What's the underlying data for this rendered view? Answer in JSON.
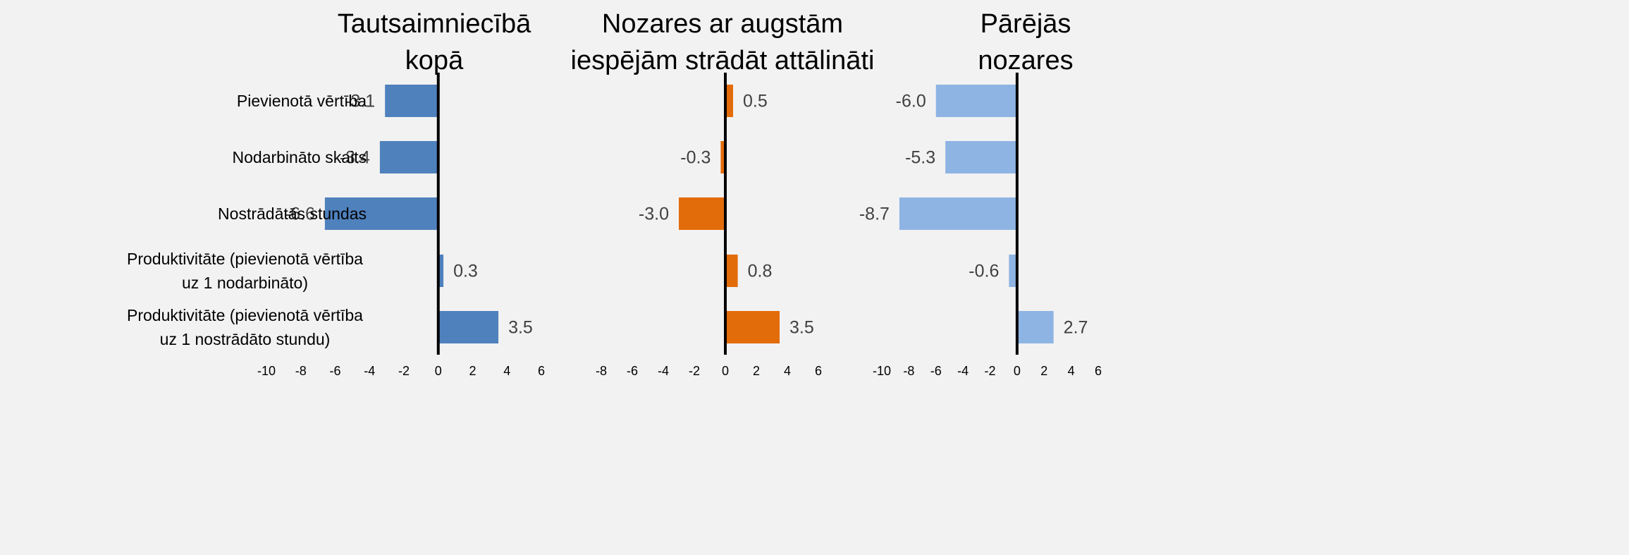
{
  "chart_data": [
    {
      "type": "barh",
      "title": "Tautsaimniecībā kopā",
      "categories": [
        "Pievienotā vērtība",
        "Nodarbināto skaits",
        "Nostrādātās stundas",
        "Produktivitāte (pievienotā vērtība uz 1 nodarbināto)",
        "Produktivitāte (pievienotā vērtība uz 1 nostrādāto stundu)"
      ],
      "values": [
        -3.1,
        -3.4,
        -6.6,
        0.3,
        3.5
      ],
      "value_labels": [
        "-3.1",
        "-3.4",
        "-6.6",
        "0.3",
        "3.5"
      ],
      "color": "#4f81bd",
      "xlim": [
        -10,
        6
      ],
      "xticks": [
        -10,
        -8,
        -6,
        -4,
        -2,
        0,
        2,
        4,
        6
      ]
    },
    {
      "type": "barh",
      "title": "Nozares ar augstām iespējām strādāt attālināti",
      "values": [
        0.5,
        -0.3,
        -3.0,
        0.8,
        3.5
      ],
      "value_labels": [
        "0.5",
        "-0.3",
        "-3.0",
        "0.8",
        "3.5"
      ],
      "color": "#e36c0a",
      "xlim": [
        -8,
        6
      ],
      "xticks": [
        -8,
        -6,
        -4,
        -2,
        0,
        2,
        4,
        6
      ]
    },
    {
      "type": "barh",
      "title": "Pārējās nozares",
      "values": [
        -6.0,
        -5.3,
        -8.7,
        -0.6,
        2.7
      ],
      "value_labels": [
        "-6.0",
        "-5.3",
        "-8.7",
        "-0.6",
        "2.7"
      ],
      "color": "#8eb4e3",
      "xlim": [
        -10,
        6
      ],
      "xticks": [
        -10,
        -8,
        -6,
        -4,
        -2,
        0,
        2,
        4,
        6
      ]
    }
  ]
}
